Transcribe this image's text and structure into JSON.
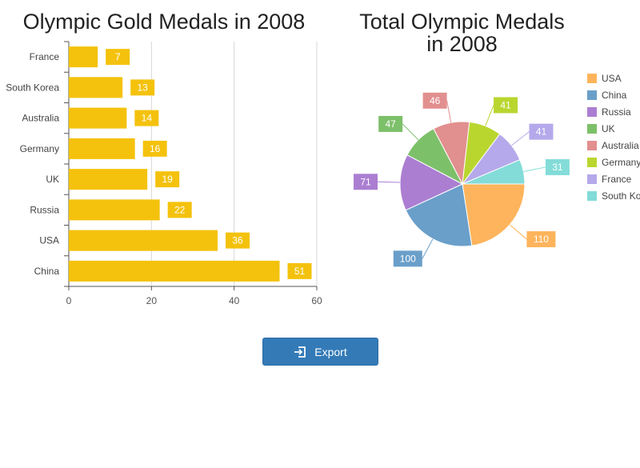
{
  "chart_data": [
    {
      "type": "bar",
      "title": "Olympic Gold Medals in 2008",
      "orientation": "horizontal",
      "categories": [
        "France",
        "South Korea",
        "Australia",
        "Germany",
        "UK",
        "Russia",
        "USA",
        "China"
      ],
      "values": [
        7,
        13,
        14,
        16,
        19,
        22,
        36,
        51
      ],
      "xlim": [
        0,
        60
      ],
      "xticks": [
        0,
        20,
        40,
        60
      ],
      "grid": true,
      "data_labels": true,
      "color": "#f4c20d"
    },
    {
      "type": "pie",
      "title_lines": [
        "Total Olympic Medals",
        "in 2008"
      ],
      "slices": [
        {
          "label": "USA",
          "value": 110,
          "color": "#fdb45c"
        },
        {
          "label": "China",
          "value": 100,
          "color": "#6a9fca"
        },
        {
          "label": "Russia",
          "value": 71,
          "color": "#ab7ed2"
        },
        {
          "label": "UK",
          "value": 47,
          "color": "#7dc06a"
        },
        {
          "label": "Australia",
          "value": 46,
          "color": "#e28f8f"
        },
        {
          "label": "Germany",
          "value": 41,
          "color": "#b9d62f"
        },
        {
          "label": "France",
          "value": 41,
          "color": "#b5a9eb"
        },
        {
          "label": "South Korea",
          "value": 31,
          "color": "#83dcd8"
        }
      ],
      "legend_position": "right",
      "data_labels": true
    }
  ],
  "toolbar": {
    "export_label": "Export",
    "export_icon": "export-icon"
  }
}
